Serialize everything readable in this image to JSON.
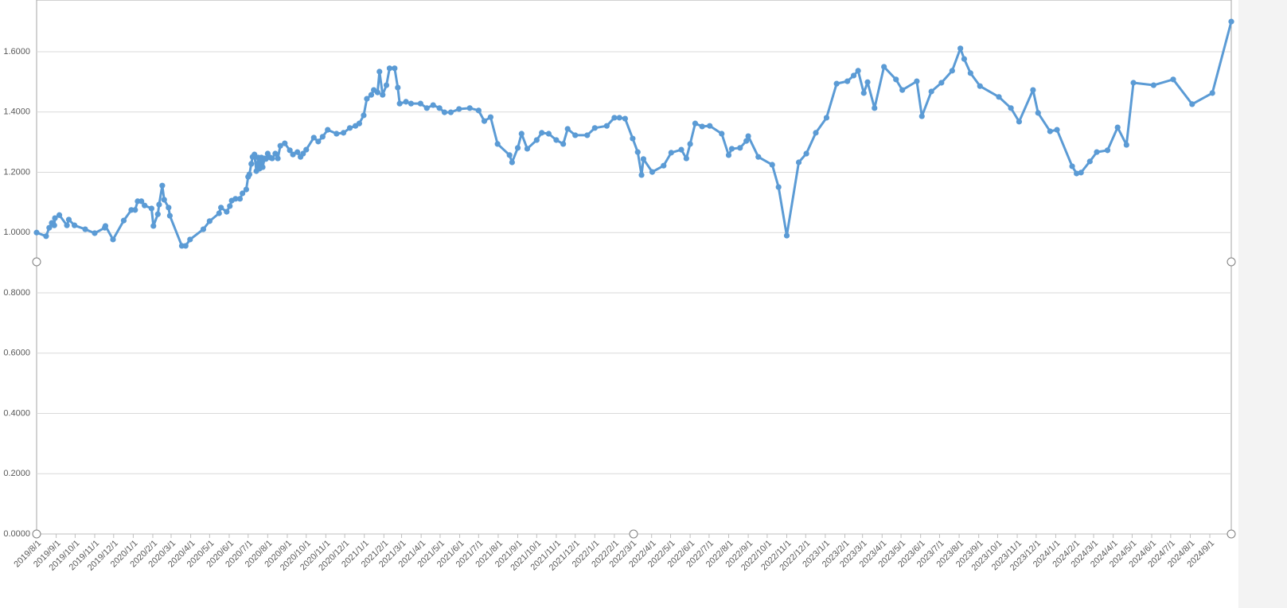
{
  "chart_data": {
    "type": "line",
    "x": [
      "2019/8/1",
      "2019/8/16",
      "2019/8/21",
      "2019/8/25",
      "2019/8/29",
      "2019/8/30",
      "2019/9/6",
      "2019/9/18",
      "2019/9/21",
      "2019/9/30",
      "2019/10/17",
      "2019/11/1",
      "2019/11/17",
      "2019/11/18",
      "2019/11/30",
      "2019/12/17",
      "2019/12/29",
      "2020/1/4",
      "2020/1/8",
      "2020/1/14",
      "2020/1/19",
      "2020/1/30",
      "2020/2/2",
      "2020/2/9",
      "2020/2/11",
      "2020/2/16",
      "2020/2/19",
      "2020/2/26",
      "2020/2/28",
      "2020/3/18",
      "2020/3/24",
      "2020/3/31",
      "2020/4/21",
      "2020/5/1",
      "2020/5/16",
      "2020/5/19",
      "2020/5/28",
      "2020/6/2",
      "2020/6/5",
      "2020/6/11",
      "2020/6/18",
      "2020/6/22",
      "2020/6/28",
      "2020/7/1",
      "2020/7/3",
      "2020/7/6",
      "2020/7/8",
      "2020/7/11",
      "2020/7/14",
      "2020/7/17",
      "2020/7/19",
      "2020/7/22",
      "2020/7/24",
      "2020/7/27",
      "2020/7/29",
      "2020/8/1",
      "2020/8/5",
      "2020/8/8",
      "2020/8/13",
      "2020/8/17",
      "2020/8/21",
      "2020/8/28",
      "2020/9/5",
      "2020/9/10",
      "2020/9/17",
      "2020/9/22",
      "2020/9/26",
      "2020/10/1",
      "2020/10/13",
      "2020/10/20",
      "2020/10/27",
      "2020/11/4",
      "2020/11/18",
      "2020/11/29",
      "2020/12/9",
      "2020/12/18",
      "2020/12/24",
      "2020/12/31",
      "2021/1/5",
      "2021/1/12",
      "2021/1/16",
      "2021/1/22",
      "2021/1/25",
      "2021/1/30",
      "2021/2/5",
      "2021/2/10",
      "2021/2/18",
      "2021/2/23",
      "2021/2/26",
      "2021/3/8",
      "2021/3/16",
      "2021/3/31",
      "2021/4/10",
      "2021/4/20",
      "2021/4/30",
      "2021/5/8",
      "2021/5/18",
      "2021/5/31",
      "2021/6/17",
      "2021/7/1",
      "2021/7/10",
      "2021/7/20",
      "2021/7/31",
      "2021/8/19",
      "2021/8/23",
      "2021/9/1",
      "2021/9/7",
      "2021/9/16",
      "2021/10/1",
      "2021/10/9",
      "2021/10/20",
      "2021/11/1",
      "2021/11/12",
      "2021/11/19",
      "2021/12/1",
      "2021/12/20",
      "2022/1/1",
      "2022/1/20",
      "2022/2/1",
      "2022/2/9",
      "2022/2/18",
      "2022/3/2",
      "2022/3/10",
      "2022/3/16",
      "2022/3/19",
      "2022/4/2",
      "2022/4/20",
      "2022/5/2",
      "2022/5/18",
      "2022/5/26",
      "2022/6/1",
      "2022/6/9",
      "2022/6/20",
      "2022/7/2",
      "2022/7/21",
      "2022/8/1",
      "2022/8/6",
      "2022/8/19",
      "2022/8/29",
      "2022/9/1",
      "2022/9/17",
      "2022/10/9",
      "2022/10/19",
      "2022/11/1",
      "2022/11/20",
      "2022/12/2",
      "2022/12/17",
      "2023/1/3",
      "2023/1/19",
      "2023/2/5",
      "2023/2/15",
      "2023/2/22",
      "2023/3/3",
      "2023/3/9",
      "2023/3/20",
      "2023/4/4",
      "2023/4/23",
      "2023/5/3",
      "2023/5/26",
      "2023/6/3",
      "2023/6/18",
      "2023/7/4",
      "2023/7/21",
      "2023/8/3",
      "2023/8/9",
      "2023/8/19",
      "2023/9/3",
      "2023/10/3",
      "2023/10/22",
      "2023/11/4",
      "2023/11/26",
      "2023/12/4",
      "2023/12/23",
      "2024/1/3",
      "2024/1/27",
      "2024/2/3",
      "2024/2/10",
      "2024/2/24",
      "2024/3/6",
      "2024/3/23",
      "2024/4/8",
      "2024/4/22",
      "2024/5/3",
      "2024/6/4",
      "2024/7/5",
      "2024/8/4",
      "2024/9/5",
      "2024/10/5"
    ],
    "series": [
      {
        "color": "#5b9bd5",
        "values": [
          1.0,
          0.988,
          1.016,
          1.032,
          1.024,
          1.048,
          1.058,
          1.024,
          1.043,
          1.024,
          1.011,
          0.998,
          1.016,
          1.022,
          0.977,
          1.04,
          1.075,
          1.075,
          1.104,
          1.104,
          1.09,
          1.08,
          1.022,
          1.061,
          1.093,
          1.156,
          1.109,
          1.083,
          1.056,
          0.956,
          0.956,
          0.977,
          1.011,
          1.038,
          1.064,
          1.083,
          1.069,
          1.088,
          1.106,
          1.112,
          1.112,
          1.13,
          1.143,
          1.185,
          1.193,
          1.228,
          1.251,
          1.259,
          1.204,
          1.249,
          1.212,
          1.249,
          1.217,
          1.246,
          1.244,
          1.262,
          1.249,
          1.246,
          1.262,
          1.246,
          1.288,
          1.296,
          1.273,
          1.259,
          1.267,
          1.251,
          1.262,
          1.275,
          1.315,
          1.302,
          1.318,
          1.341,
          1.328,
          1.331,
          1.347,
          1.354,
          1.362,
          1.389,
          1.444,
          1.457,
          1.473,
          1.465,
          1.534,
          1.457,
          1.489,
          1.545,
          1.545,
          1.481,
          1.428,
          1.434,
          1.428,
          1.428,
          1.413,
          1.423,
          1.413,
          1.399,
          1.399,
          1.41,
          1.413,
          1.405,
          1.37,
          1.383,
          1.294,
          1.257,
          1.233,
          1.281,
          1.328,
          1.278,
          1.307,
          1.331,
          1.328,
          1.307,
          1.294,
          1.344,
          1.323,
          1.323,
          1.347,
          1.354,
          1.381,
          1.381,
          1.378,
          1.312,
          1.267,
          1.191,
          1.244,
          1.201,
          1.222,
          1.265,
          1.275,
          1.246,
          1.294,
          1.362,
          1.352,
          1.354,
          1.328,
          1.257,
          1.278,
          1.281,
          1.304,
          1.32,
          1.251,
          1.225,
          1.151,
          0.99,
          1.233,
          1.262,
          1.331,
          1.381,
          1.494,
          1.502,
          1.521,
          1.537,
          1.463,
          1.499,
          1.413,
          1.55,
          1.508,
          1.473,
          1.502,
          1.386,
          1.468,
          1.497,
          1.537,
          1.611,
          1.576,
          1.529,
          1.486,
          1.45,
          1.413,
          1.368,
          1.473,
          1.397,
          1.336,
          1.341,
          1.22,
          1.196,
          1.199,
          1.236,
          1.267,
          1.273,
          1.349,
          1.291,
          1.497,
          1.489,
          1.508,
          1.426,
          1.463,
          1.7
        ]
      }
    ],
    "xlim": [
      "2019/8/1",
      "2024/10/5"
    ],
    "xticks": [
      "2019/8/1",
      "2019/9/1",
      "2019/10/1",
      "2019/11/1",
      "2019/12/1",
      "2020/1/1",
      "2020/2/1",
      "2020/3/1",
      "2020/4/1",
      "2020/5/1",
      "2020/6/1",
      "2020/7/1",
      "2020/8/1",
      "2020/9/1",
      "2020/10/1",
      "2020/11/1",
      "2020/12/1",
      "2021/1/1",
      "2021/2/1",
      "2021/3/1",
      "2021/4/1",
      "2021/5/1",
      "2021/6/1",
      "2021/7/1",
      "2021/8/1",
      "2021/9/1",
      "2021/10/1",
      "2021/11/1",
      "2021/12/1",
      "2022/1/1",
      "2022/2/1",
      "2022/3/1",
      "2022/4/1",
      "2022/5/1",
      "2022/6/1",
      "2022/7/1",
      "2022/8/1",
      "2022/9/1",
      "2022/10/1",
      "2022/11/1",
      "2022/12/1",
      "2023/1/1",
      "2023/2/1",
      "2023/3/1",
      "2023/4/1",
      "2023/5/1",
      "2023/6/1",
      "2023/7/1",
      "2023/8/1",
      "2023/9/1",
      "2023/10/1",
      "2023/11/1",
      "2023/12/1",
      "2024/1/1",
      "2024/2/1",
      "2024/3/1",
      "2024/4/1",
      "2024/5/1",
      "2024/6/1",
      "2024/7/1",
      "2024/8/1",
      "2024/9/1"
    ],
    "ylim": [
      0,
      1.8
    ],
    "yticks": [
      {
        "value": 0,
        "label": "0.0000"
      },
      {
        "value": 0.2,
        "label": "0.2000"
      },
      {
        "value": 0.4,
        "label": "0.4000"
      },
      {
        "value": 0.6,
        "label": "0.6000"
      },
      {
        "value": 0.8,
        "label": "0.8000"
      },
      {
        "value": 1,
        "label": "1.0000"
      },
      {
        "value": 1.2,
        "label": "1.2000"
      },
      {
        "value": 1.4,
        "label": "1.4000"
      },
      {
        "value": 1.6,
        "label": "1.6000"
      }
    ],
    "grid": true
  }
}
